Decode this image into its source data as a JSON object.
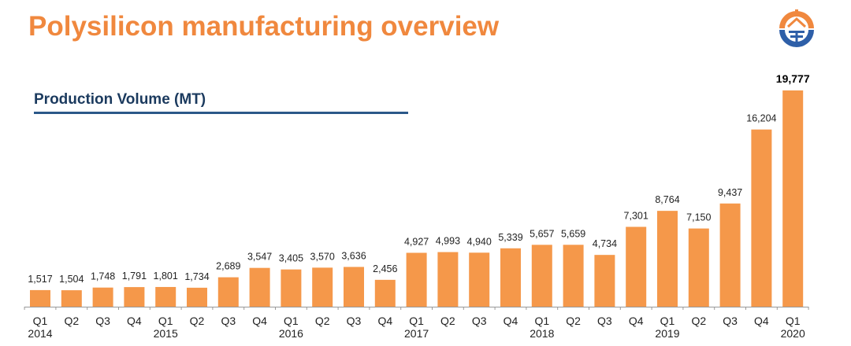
{
  "header": {
    "title": "Polysilicon manufacturing overview",
    "subtitle": "Production Volume (MT)"
  },
  "logo": {
    "icon": "company-logo-circle",
    "colors": [
      "#F0883E",
      "#2E5FA8"
    ]
  },
  "chart_data": {
    "type": "bar",
    "title": "Production Volume (MT)",
    "categories": [
      "Q1 2014",
      "Q2 2014",
      "Q3 2014",
      "Q4 2014",
      "Q1 2015",
      "Q2 2015",
      "Q3 2015",
      "Q4 2015",
      "Q1 2016",
      "Q2 2016",
      "Q3 2016",
      "Q4 2016",
      "Q1 2017",
      "Q2 2017",
      "Q3 2017",
      "Q4 2017",
      "Q1 2018",
      "Q2 2018",
      "Q3 2018",
      "Q4 2018",
      "Q1 2019",
      "Q2 2019",
      "Q3 2019",
      "Q4 2019",
      "Q1 2020"
    ],
    "quarter_labels": [
      "Q1",
      "Q2",
      "Q3",
      "Q4",
      "Q1",
      "Q2",
      "Q3",
      "Q4",
      "Q1",
      "Q2",
      "Q3",
      "Q4",
      "Q1",
      "Q2",
      "Q3",
      "Q4",
      "Q1",
      "Q2",
      "Q3",
      "Q4",
      "Q1",
      "Q2",
      "Q3",
      "Q4",
      "Q1"
    ],
    "year_labels": [
      "2014",
      "",
      "",
      "",
      "2015",
      "",
      "",
      "",
      "2016",
      "",
      "",
      "",
      "2017",
      "",
      "",
      "",
      "2018",
      "",
      "",
      "",
      "2019",
      "",
      "",
      "",
      "2020"
    ],
    "values": [
      1517,
      1504,
      1748,
      1791,
      1801,
      1734,
      2689,
      3547,
      3405,
      3570,
      3636,
      2456,
      4927,
      4993,
      4940,
      5339,
      5657,
      5659,
      4734,
      7301,
      8764,
      7150,
      9437,
      16204,
      19777
    ],
    "data_labels": [
      "1,517",
      "1,504",
      "1,748",
      "1,791",
      "1,801",
      "1,734",
      "2,689",
      "3,547",
      "3,405",
      "3,570",
      "3,636",
      "2,456",
      "4,927",
      "4,993",
      "4,940",
      "5,339",
      "5,657",
      "5,659",
      "4,734",
      "7,301",
      "8,764",
      "7,150",
      "9,437",
      "16,204",
      "19,777"
    ],
    "highlight_last_label_bold": true,
    "bar_color": "#F5984A",
    "ylim": [
      0,
      20000
    ],
    "grid": false,
    "legend": "none",
    "xlabel": "",
    "ylabel": ""
  }
}
